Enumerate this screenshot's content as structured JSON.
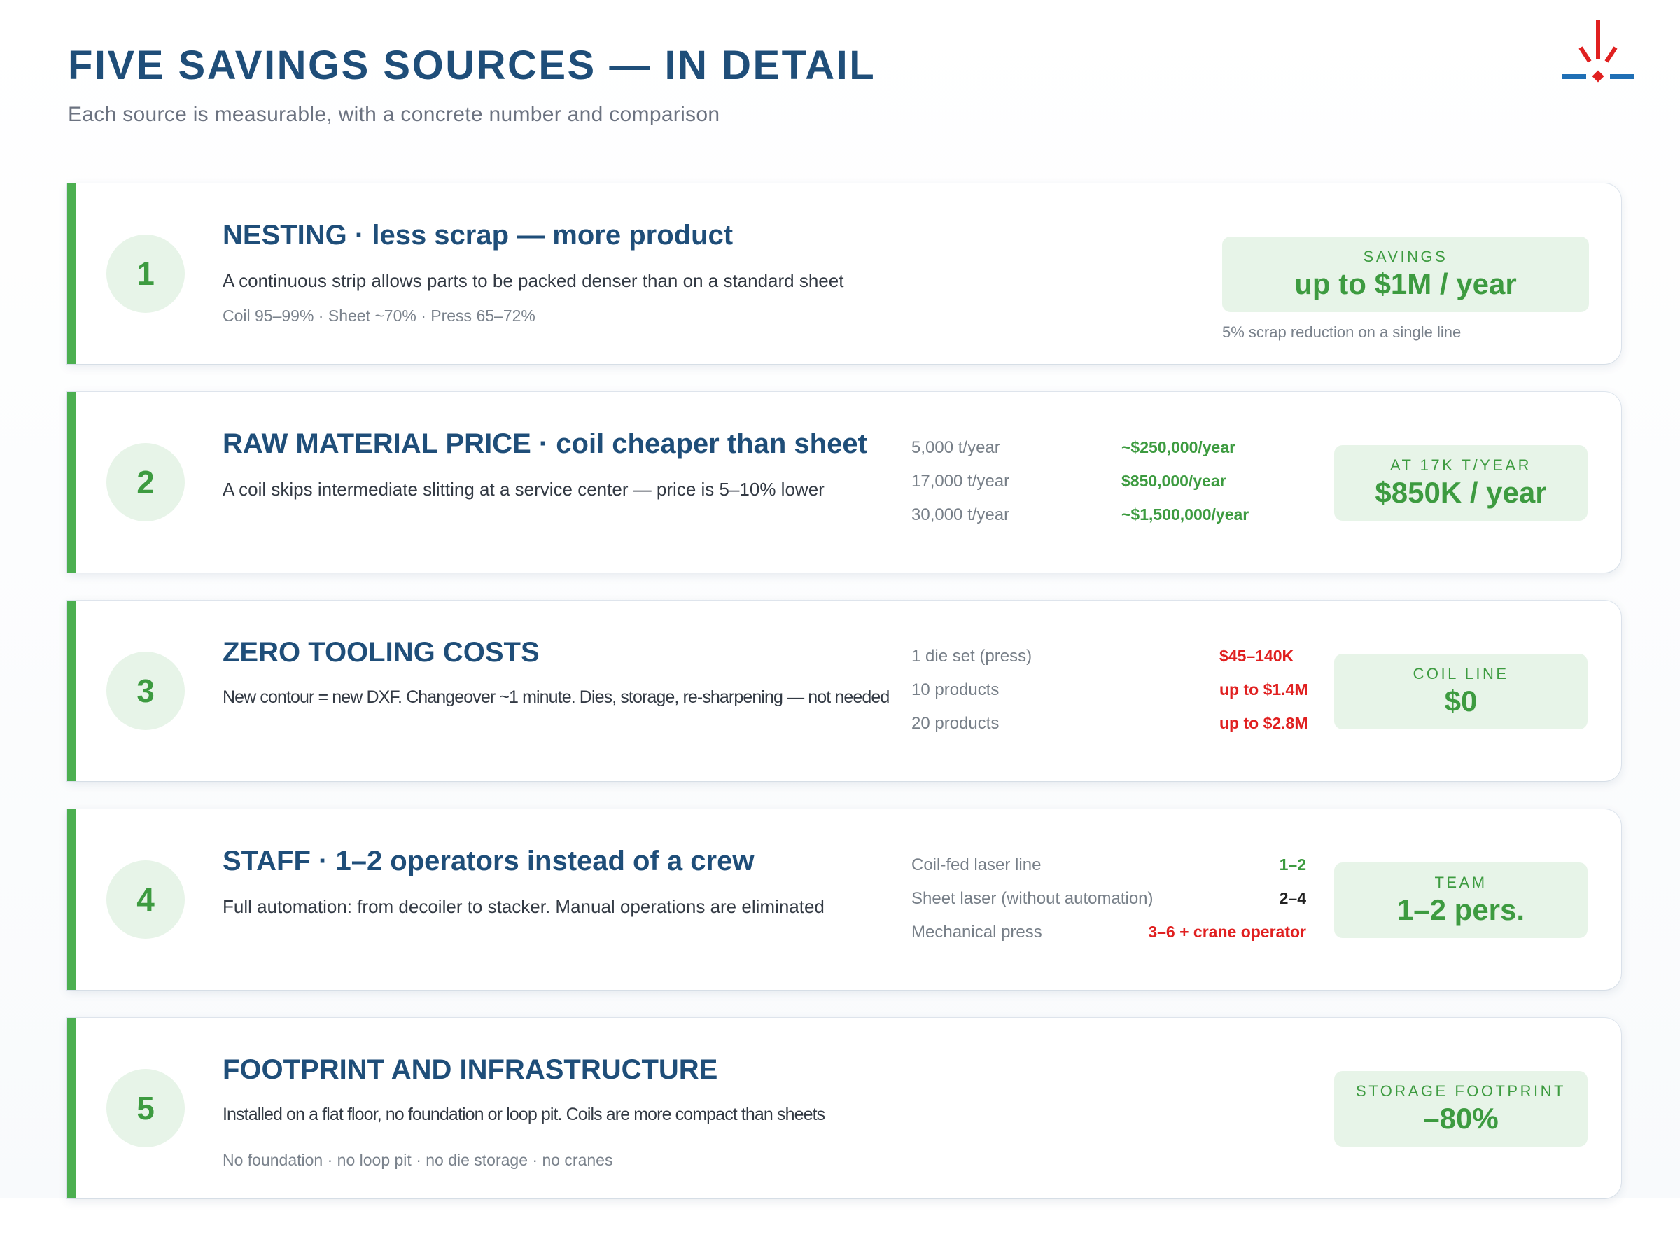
{
  "header": {
    "title": "FIVE SAVINGS SOURCES — IN DETAIL",
    "subtitle": "Each source is measurable, with a concrete number and comparison"
  },
  "logo": {
    "icon": "spark-logo-icon",
    "colors": {
      "red": "#e02020",
      "blue": "#1f6fb5"
    }
  },
  "colors": {
    "accent_green": "#4caf50",
    "title_blue": "#1f4e79",
    "badge_bg": "#e7f4e8",
    "negative_red": "#e02020"
  },
  "cards": [
    {
      "number": "1",
      "title": "NESTING · less scrap — more product",
      "description": "A continuous strip allows parts to be packed denser than on a standard sheet",
      "note": "Coil 95–99% · Sheet ~70% · Press 65–72%",
      "badge": {
        "label": "SAVINGS",
        "value": "up to $1M / year",
        "sub": "5% scrap reduction on a single line"
      }
    },
    {
      "number": "2",
      "title": "RAW MATERIAL PRICE · coil cheaper than sheet",
      "description": "A coil skips intermediate slitting at a service center — price is 5–10% lower",
      "comparison": [
        {
          "label": "5,000 t/year",
          "value": "~$250,000/year"
        },
        {
          "label": "17,000 t/year",
          "value": "$850,000/year"
        },
        {
          "label": "30,000 t/year",
          "value": "~$1,500,000/year"
        }
      ],
      "badge": {
        "label": "AT 17K T/YEAR",
        "value": "$850K / year"
      }
    },
    {
      "number": "3",
      "title": "ZERO TOOLING COSTS",
      "description": "New contour = new DXF. Changeover ~1 minute. Dies, storage, re-sharpening — not needed",
      "comparison": [
        {
          "label": "1 die set (press)",
          "value": "$45–140K"
        },
        {
          "label": "10 products",
          "value": "up to $1.4M"
        },
        {
          "label": "20 products",
          "value": "up to $2.8M"
        }
      ],
      "badge": {
        "label": "COIL LINE",
        "value": "$0"
      }
    },
    {
      "number": "4",
      "title": "STAFF · 1–2 operators instead of a crew",
      "description": "Full automation: from decoiler to stacker. Manual operations are eliminated",
      "comparison": [
        {
          "label": "Coil-fed laser line",
          "value": "1–2"
        },
        {
          "label": "Sheet laser (without automation)",
          "value": "2–4"
        },
        {
          "label": "Mechanical press",
          "value": "3–6 + crane operator"
        }
      ],
      "badge": {
        "label": "TEAM",
        "value": "1–2 pers."
      }
    },
    {
      "number": "5",
      "title": "FOOTPRINT AND INFRASTRUCTURE",
      "description": "Installed on a flat floor, no foundation or loop pit. Coils are more compact than sheets",
      "note": "No foundation · no loop pit · no die storage · no cranes",
      "badge": {
        "label": "STORAGE FOOTPRINT",
        "value": "–80%"
      }
    }
  ]
}
